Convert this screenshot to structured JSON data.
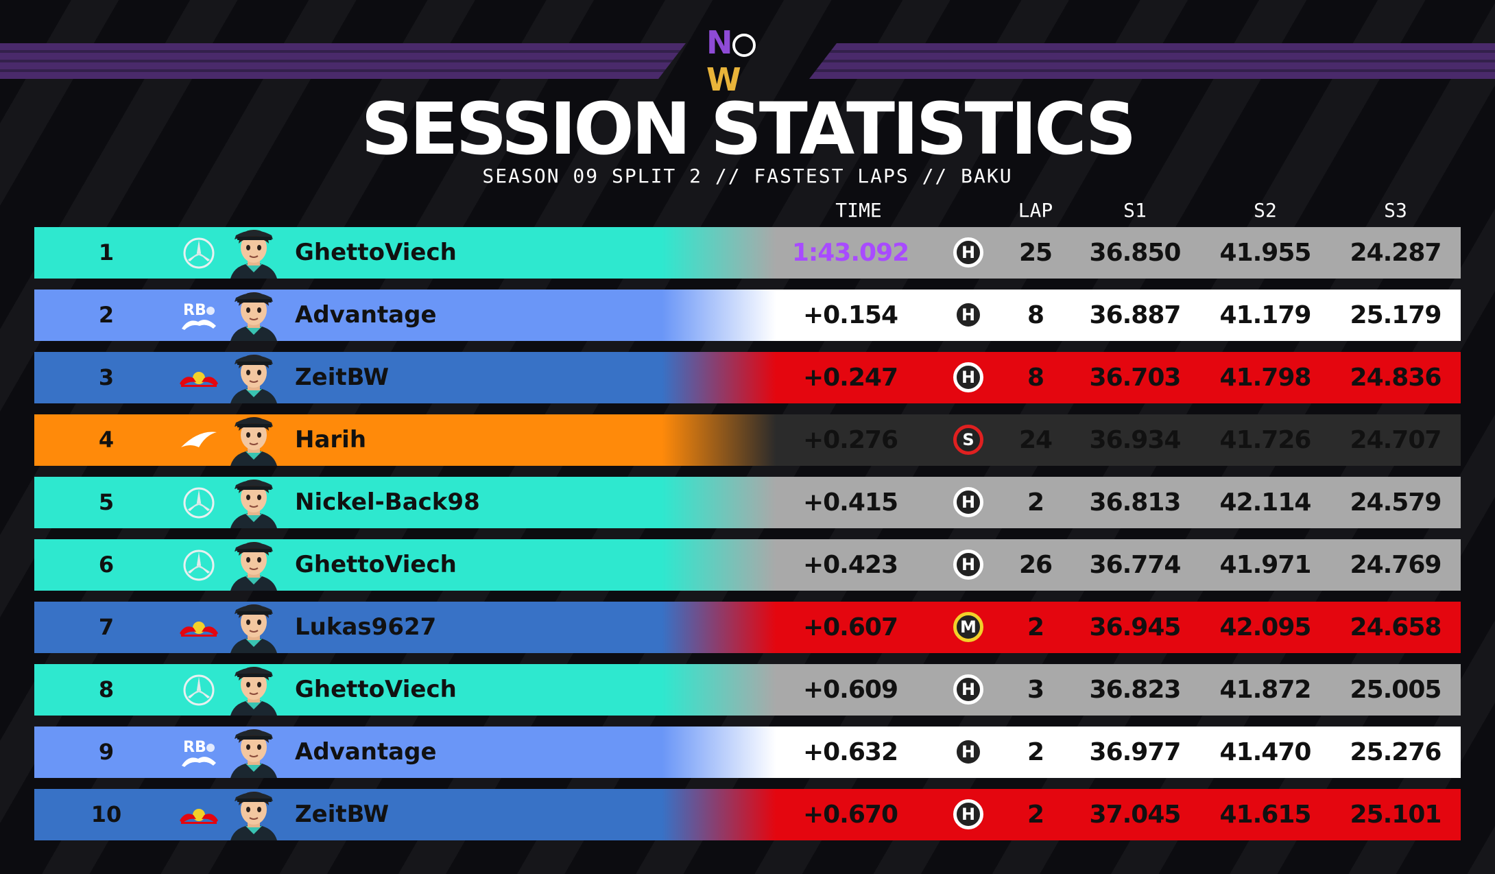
{
  "header": {
    "logo": {
      "n": "N",
      "w": "W"
    },
    "title": "SESSION STATISTICS",
    "subtitle": "SEASON 09 SPLIT 2 // FASTEST LAPS // BAKU"
  },
  "columns": {
    "time": "TIME",
    "lap": "LAP",
    "s1": "S1",
    "s2": "S2",
    "s3": "S3"
  },
  "colors": {
    "mercedes": "#2ee8cf",
    "rb": "#6a96f7",
    "redbull": "#3872c6",
    "mclaren": "#ff8a0a",
    "purple_time": "#a84bff",
    "tyre_hard": "#ffffff",
    "tyre_soft": "#e02020",
    "tyre_medium": "#f2d12a"
  },
  "rows": [
    {
      "pos": "1",
      "team": "mercedes-icon",
      "driver": "GhettoViech",
      "time": "1:43.092",
      "tyre": "H",
      "lap": "25",
      "s1": "36.850",
      "s2": "41.955",
      "s3": "24.287"
    },
    {
      "pos": "2",
      "team": "rb-icon",
      "driver": "Advantage",
      "time": "+0.154",
      "tyre": "H",
      "lap": "8",
      "s1": "36.887",
      "s2": "41.179",
      "s3": "25.179"
    },
    {
      "pos": "3",
      "team": "red-bull-icon",
      "driver": "ZeitBW",
      "time": "+0.247",
      "tyre": "H",
      "lap": "8",
      "s1": "36.703",
      "s2": "41.798",
      "s3": "24.836"
    },
    {
      "pos": "4",
      "team": "mclaren-icon",
      "driver": "Harih",
      "time": "+0.276",
      "tyre": "S",
      "lap": "24",
      "s1": "36.934",
      "s2": "41.726",
      "s3": "24.707"
    },
    {
      "pos": "5",
      "team": "mercedes-icon",
      "driver": "Nickel-Back98",
      "time": "+0.415",
      "tyre": "H",
      "lap": "2",
      "s1": "36.813",
      "s2": "42.114",
      "s3": "24.579"
    },
    {
      "pos": "6",
      "team": "mercedes-icon",
      "driver": "GhettoViech",
      "time": "+0.423",
      "tyre": "H",
      "lap": "26",
      "s1": "36.774",
      "s2": "41.971",
      "s3": "24.769"
    },
    {
      "pos": "7",
      "team": "red-bull-icon",
      "driver": "Lukas9627",
      "time": "+0.607",
      "tyre": "M",
      "lap": "2",
      "s1": "36.945",
      "s2": "42.095",
      "s3": "24.658"
    },
    {
      "pos": "8",
      "team": "mercedes-icon",
      "driver": "GhettoViech",
      "time": "+0.609",
      "tyre": "H",
      "lap": "3",
      "s1": "36.823",
      "s2": "41.872",
      "s3": "25.005"
    },
    {
      "pos": "9",
      "team": "rb-icon",
      "driver": "Advantage",
      "time": "+0.632",
      "tyre": "H",
      "lap": "2",
      "s1": "36.977",
      "s2": "41.470",
      "s3": "25.276"
    },
    {
      "pos": "10",
      "team": "red-bull-icon",
      "driver": "ZeitBW",
      "time": "+0.670",
      "tyre": "H",
      "lap": "2",
      "s1": "37.045",
      "s2": "41.615",
      "s3": "25.101"
    }
  ]
}
